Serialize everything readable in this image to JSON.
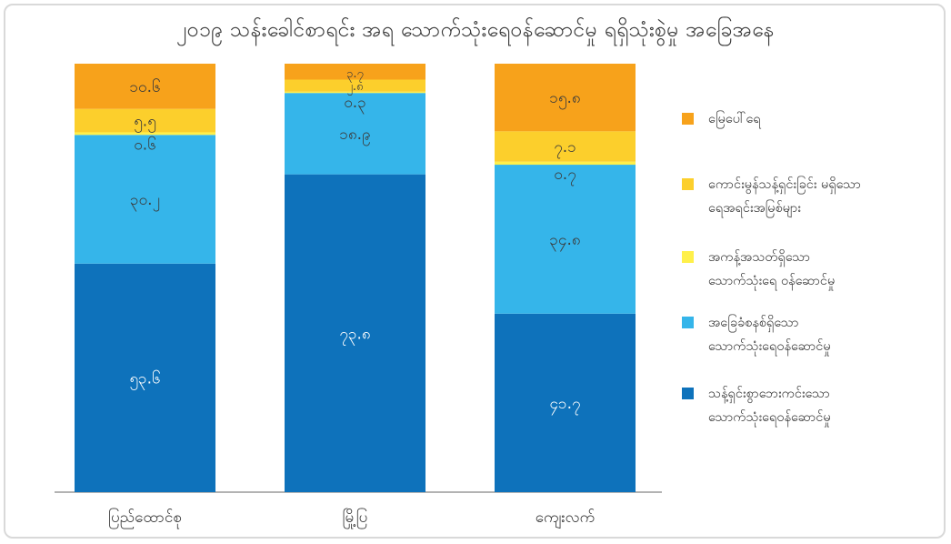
{
  "chart_data": {
    "type": "bar",
    "stacked": true,
    "title": "၂၀၁၉ သန်းခေါင်စာရင်း အရ သောက်သုံးရေဝန်ဆောင်မှု ရရှိသုံးစွဲမှု အခြေအနေ",
    "categories": [
      "ပြည်ထောင်စု",
      "မြို့ပြ",
      "ကျေးလက်"
    ],
    "ylim": [
      0,
      100
    ],
    "grid": false,
    "legend_position": "right",
    "series": [
      {
        "name": "သန့်ရှင်းစွာဘေးကင်းသော\nသောက်သုံးရေဝန်ဆောင်မှု",
        "color": "#0e72bb",
        "values": [
          53.6,
          73.8,
          41.7
        ],
        "labels": [
          "၅၃.၆",
          "၇၃.၈",
          "၄၁.၇"
        ]
      },
      {
        "name": "အခြေခံစနစ်ရှိသော\nသောက်သုံးရေဝန်ဆောင်မှု",
        "color": "#35b5ea",
        "values": [
          30.2,
          18.9,
          34.8
        ],
        "labels": [
          "၃၀.၂",
          "၁၈.၉",
          "၃၄.၈"
        ]
      },
      {
        "name": "အကန့်အသတ်ရှိသော\nသောက်သုံးရေ ဝန်ဆောင်မှု",
        "color": "#fff04a",
        "values": [
          0.6,
          0.3,
          0.7
        ],
        "labels": [
          "၀.၆",
          "၀.၃",
          "၀.၇"
        ]
      },
      {
        "name": "ကောင်းမွန်သန့်ရှင်းခြင်း မရှိသော\nရေအရင်းအမြစ်များ",
        "color": "#fccf2c",
        "values": [
          5.5,
          2.8,
          7.1
        ],
        "labels": [
          "၅.၅",
          "၂.၈",
          "၇.၁"
        ]
      },
      {
        "name": "မြေပေါ်ရေ",
        "color": "#f7a21b",
        "values": [
          10.6,
          3.7,
          15.8
        ],
        "labels": [
          "၁၀.၆",
          "၃.၇",
          "၁၅.၈"
        ]
      }
    ]
  }
}
